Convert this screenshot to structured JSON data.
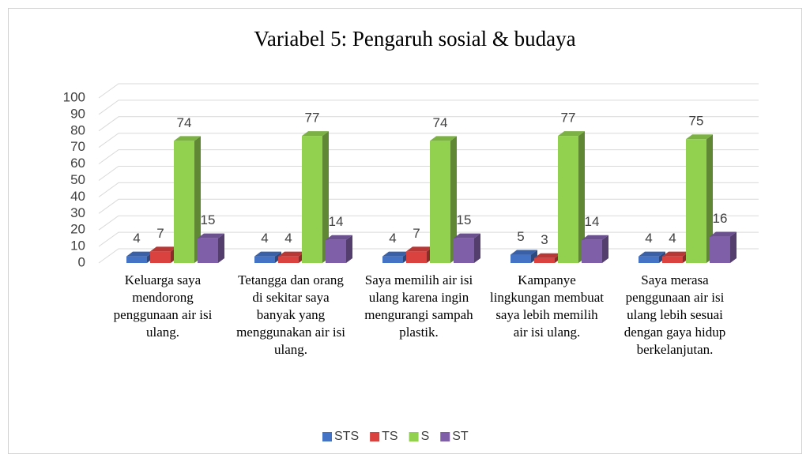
{
  "chart_data": {
    "type": "bar3d",
    "title": "Variabel 5: Pengaruh sosial & budaya",
    "categories": [
      "Keluarga saya mendorong penggunaan air isi ulang.",
      "Tetangga dan orang di sekitar saya banyak yang menggunakan air isi ulang.",
      "Saya memilih air isi ulang karena ingin mengurangi sampah plastik.",
      "Kampanye lingkungan membuat saya lebih memilih air isi ulang.",
      "Saya merasa penggunaan air isi ulang lebih sesuai dengan gaya hidup berkelanjutan."
    ],
    "series": [
      {
        "name": "STS",
        "color": "#4472c4",
        "values": [
          4,
          4,
          4,
          5,
          4
        ]
      },
      {
        "name": "TS",
        "color": "#d9423f",
        "values": [
          7,
          4,
          7,
          3,
          4
        ]
      },
      {
        "name": "S",
        "color": "#92d050",
        "values": [
          74,
          77,
          74,
          77,
          75
        ]
      },
      {
        "name": "ST",
        "color": "#7f5fa8",
        "values": [
          15,
          14,
          15,
          14,
          16
        ]
      }
    ],
    "ylim": [
      0,
      100
    ],
    "yticks": [
      0,
      10,
      20,
      30,
      40,
      50,
      60,
      70,
      80,
      90,
      100
    ],
    "grid": true,
    "legend": "bottom"
  }
}
